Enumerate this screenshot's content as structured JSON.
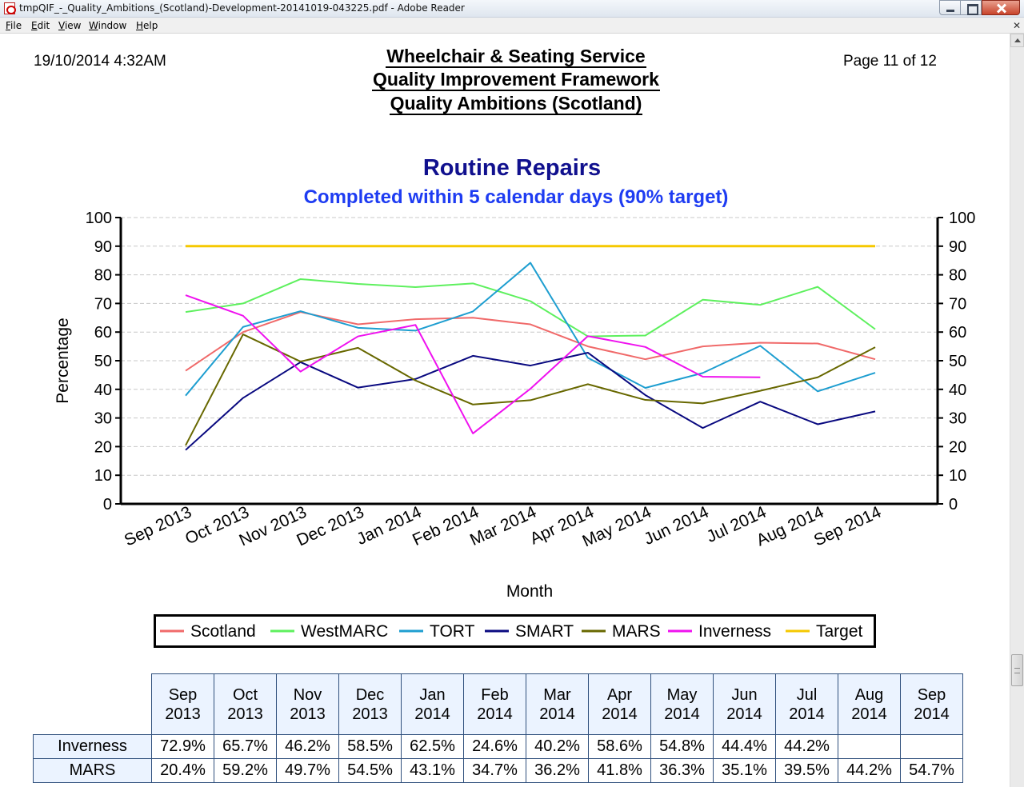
{
  "window": {
    "title": "tmpQIF_-_Quality_Ambitions_(Scotland)-Development-20141019-043225.pdf - Adobe Reader",
    "menu": [
      "File",
      "Edit",
      "View",
      "Window",
      "Help"
    ],
    "doc_close": "✕"
  },
  "report": {
    "date": "19/10/2014 4:32AM",
    "page": "Page 11 of 12",
    "title_lines": [
      "Wheelchair & Seating Service",
      "Quality Improvement Framework",
      "Quality Ambitions (Scotland)"
    ]
  },
  "chart_data": {
    "type": "line",
    "title": "Routine Repairs",
    "subtitle": "Completed within 5 calendar days (90% target)",
    "ylabel": "Percentage",
    "xlabel": "Month",
    "ylim": [
      0,
      100
    ],
    "yticks": [
      0,
      10,
      20,
      30,
      40,
      50,
      60,
      70,
      80,
      90,
      100
    ],
    "grid": true,
    "legend_position": "bottom",
    "categories": [
      "Sep 2013",
      "Oct 2013",
      "Nov 2013",
      "Dec 2013",
      "Jan 2014",
      "Feb 2014",
      "Mar 2014",
      "Apr 2014",
      "May 2014",
      "Jun 2014",
      "Jul 2014",
      "Aug 2014",
      "Sep 2014"
    ],
    "series": [
      {
        "name": "Scotland",
        "color": "#f06a6a",
        "values": [
          46.5,
          60,
          67,
          62.7,
          64.5,
          65,
          62.7,
          55,
          50.5,
          55,
          56.3,
          56,
          50.5
        ]
      },
      {
        "name": "WestMARC",
        "color": "#5ef05e",
        "values": [
          67,
          70,
          78.5,
          76.8,
          75.7,
          77,
          70.8,
          58.5,
          58.8,
          71.3,
          69.5,
          75.8,
          61
        ]
      },
      {
        "name": "TORT",
        "color": "#1e9ed0",
        "values": [
          37.8,
          61.8,
          67.3,
          61.5,
          60.5,
          67.2,
          84.2,
          51,
          40.5,
          45.7,
          55.2,
          39.3,
          45.8
        ]
      },
      {
        "name": "SMART",
        "color": "#0a0a80",
        "values": [
          18.8,
          37,
          49.5,
          40.6,
          43.6,
          51.7,
          48.3,
          52.8,
          38,
          26.5,
          35.7,
          27.8,
          32.3
        ]
      },
      {
        "name": "MARS",
        "color": "#686800",
        "values": [
          20.4,
          59.2,
          49.7,
          54.5,
          43.1,
          34.7,
          36.2,
          41.8,
          36.3,
          35.1,
          39.5,
          44.2,
          54.7
        ]
      },
      {
        "name": "Inverness",
        "color": "#ef12ef",
        "values": [
          72.9,
          65.7,
          46.2,
          58.5,
          62.5,
          24.6,
          40.2,
          58.6,
          54.8,
          44.4,
          44.2,
          null,
          null
        ]
      },
      {
        "name": "Target",
        "color": "#f5c800",
        "values": [
          90,
          90,
          90,
          90,
          90,
          90,
          90,
          90,
          90,
          90,
          90,
          90,
          90
        ]
      }
    ]
  },
  "table": {
    "headers": [
      [
        "Sep",
        "2013"
      ],
      [
        "Oct",
        "2013"
      ],
      [
        "Nov",
        "2013"
      ],
      [
        "Dec",
        "2013"
      ],
      [
        "Jan",
        "2014"
      ],
      [
        "Feb",
        "2014"
      ],
      [
        "Mar",
        "2014"
      ],
      [
        "Apr",
        "2014"
      ],
      [
        "May",
        "2014"
      ],
      [
        "Jun",
        "2014"
      ],
      [
        "Jul",
        "2014"
      ],
      [
        "Aug",
        "2014"
      ],
      [
        "Sep",
        "2014"
      ]
    ],
    "rows": [
      {
        "label": "Inverness",
        "cells": [
          "72.9%",
          "65.7%",
          "46.2%",
          "58.5%",
          "62.5%",
          "24.6%",
          "40.2%",
          "58.6%",
          "54.8%",
          "44.4%",
          "44.2%",
          "",
          ""
        ]
      },
      {
        "label": "MARS",
        "cells": [
          "20.4%",
          "59.2%",
          "49.7%",
          "54.5%",
          "43.1%",
          "34.7%",
          "36.2%",
          "41.8%",
          "36.3%",
          "35.1%",
          "39.5%",
          "44.2%",
          "54.7%"
        ]
      }
    ]
  }
}
